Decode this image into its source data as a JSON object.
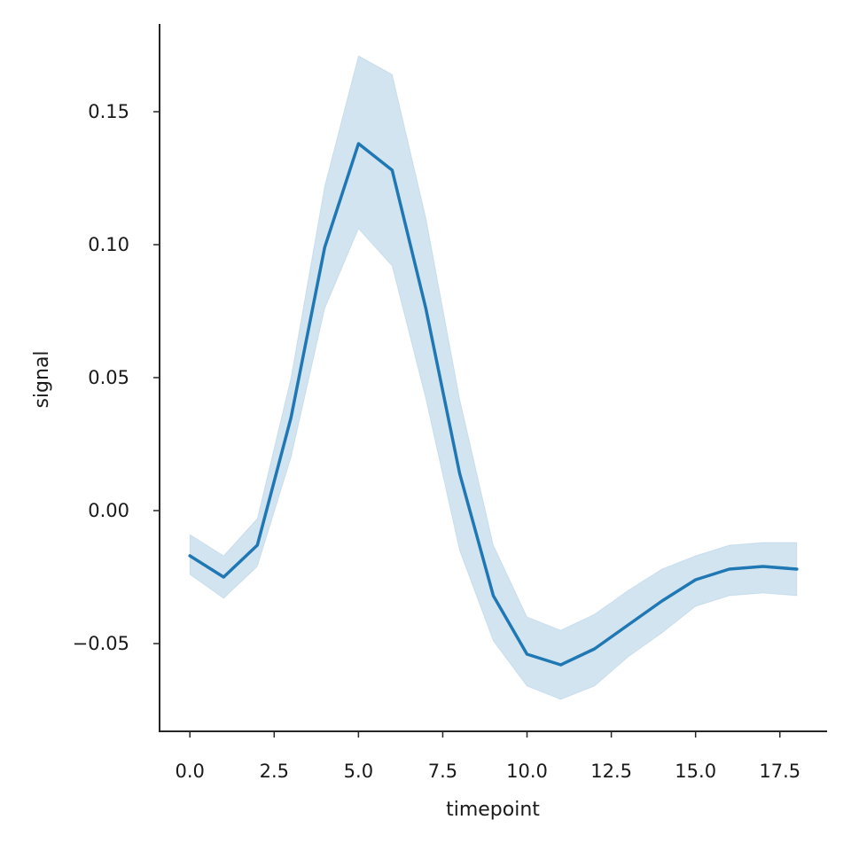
{
  "chart_data": {
    "type": "line",
    "title": "",
    "xlabel": "timepoint",
    "ylabel": "signal",
    "xlim": [
      -0.9,
      18.9
    ],
    "ylim": [
      -0.083,
      0.183
    ],
    "x_ticks": [
      0.0,
      2.5,
      5.0,
      7.5,
      10.0,
      12.5,
      15.0,
      17.5
    ],
    "x_tick_labels": [
      "0.0",
      "2.5",
      "5.0",
      "7.5",
      "10.0",
      "12.5",
      "15.0",
      "17.5"
    ],
    "y_ticks": [
      -0.05,
      0.0,
      0.05,
      0.1,
      0.15
    ],
    "y_tick_labels": [
      "−0.05",
      "0.00",
      "0.05",
      "0.10",
      "0.15"
    ],
    "grid": false,
    "legend": "none",
    "colors": {
      "line": "#1f77b4",
      "band": "#1f77b4",
      "band_opacity": 0.2
    },
    "series": [
      {
        "x": [
          0,
          1,
          2,
          3,
          4,
          5,
          6,
          7,
          8,
          9,
          10,
          11,
          12,
          13,
          14,
          15,
          16,
          17,
          18
        ],
        "y": [
          -0.017,
          -0.025,
          -0.013,
          0.035,
          0.099,
          0.138,
          0.128,
          0.076,
          0.014,
          -0.032,
          -0.054,
          -0.058,
          -0.052,
          -0.043,
          -0.034,
          -0.026,
          -0.022,
          -0.021,
          -0.022
        ],
        "ci_low": [
          -0.024,
          -0.033,
          -0.021,
          0.02,
          0.076,
          0.106,
          0.092,
          0.042,
          -0.015,
          -0.049,
          -0.066,
          -0.071,
          -0.066,
          -0.055,
          -0.046,
          -0.036,
          -0.032,
          -0.031,
          -0.032
        ],
        "ci_high": [
          -0.009,
          -0.017,
          -0.003,
          0.05,
          0.122,
          0.171,
          0.164,
          0.11,
          0.042,
          -0.013,
          -0.04,
          -0.045,
          -0.039,
          -0.03,
          -0.022,
          -0.017,
          -0.013,
          -0.012,
          -0.012
        ]
      }
    ]
  }
}
